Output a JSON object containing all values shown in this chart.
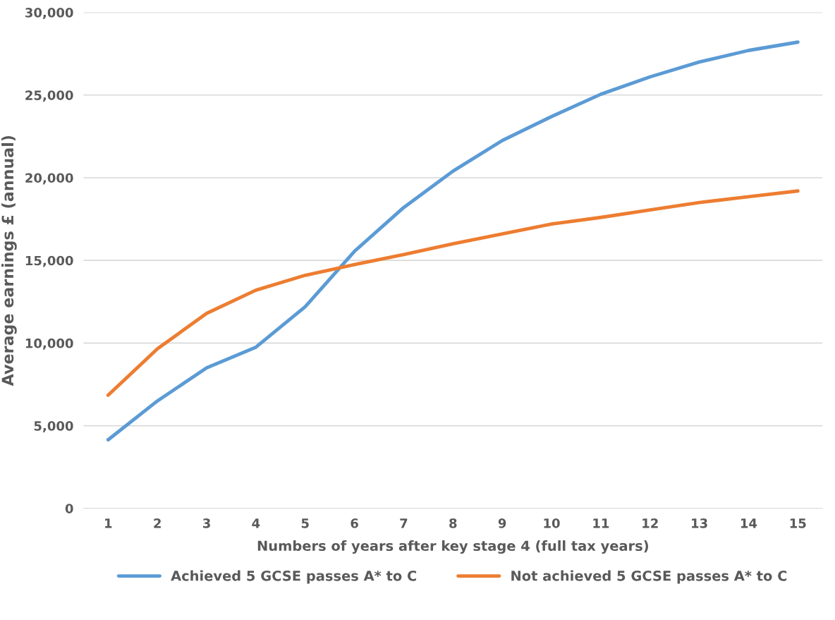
{
  "chart_data": {
    "type": "line",
    "xlabel": "Numbers of years after key stage 4 (full tax years)",
    "ylabel": "Average earnings £ (annual)",
    "categories": [
      "1",
      "2",
      "3",
      "4",
      "5",
      "6",
      "7",
      "8",
      "9",
      "10",
      "11",
      "12",
      "13",
      "14",
      "15"
    ],
    "series": [
      {
        "name": "Achieved 5 GCSE passes A* to C",
        "color": "#5b9bd5",
        "values": [
          4150,
          6500,
          8500,
          9750,
          12200,
          15550,
          18200,
          20400,
          22250,
          23700,
          25050,
          26100,
          27000,
          27700,
          28200
        ]
      },
      {
        "name": "Not achieved 5 GCSE passes A* to C",
        "color": "#ed7d31",
        "values": [
          6850,
          9650,
          11800,
          13200,
          14100,
          14750,
          15350,
          16000,
          16600,
          17200,
          17600,
          18050,
          18500,
          18850,
          19200
        ]
      }
    ],
    "ylim": [
      0,
      30000
    ],
    "yticks": [
      {
        "value": 0,
        "label": "0"
      },
      {
        "value": 5000,
        "label": "5,000"
      },
      {
        "value": 10000,
        "label": "10,000"
      },
      {
        "value": 15000,
        "label": "15,000"
      },
      {
        "value": 20000,
        "label": "20,000"
      },
      {
        "value": 25000,
        "label": "25,000"
      },
      {
        "value": 30000,
        "label": "30,000"
      }
    ],
    "grid": "y",
    "legend": "bottom",
    "marker": "none",
    "line_style": "solid"
  }
}
